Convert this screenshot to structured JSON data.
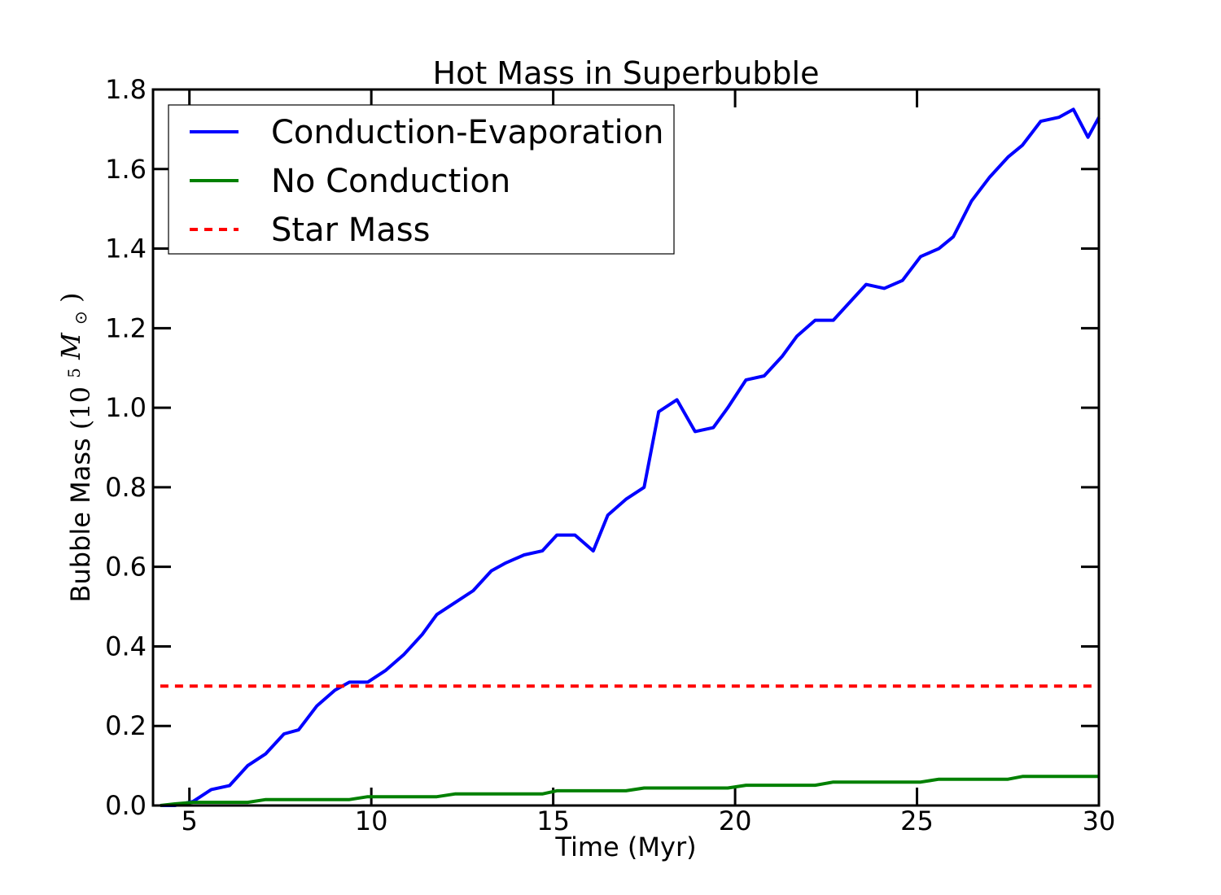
{
  "chart_data": {
    "type": "line",
    "title": "Hot Mass in Superbubble",
    "xlabel": "Time (Myr)",
    "ylabel": "Bubble Mass",
    "ylabel_unit_base": "(10",
    "ylabel_unit_exp": "5",
    "ylabel_unit_symbol": "M",
    "ylabel_unit_sub": "⊙",
    "ylabel_unit_close": ")",
    "xlim": [
      4,
      30
    ],
    "ylim": [
      0,
      1.8
    ],
    "xticks": [
      5,
      10,
      15,
      20,
      25,
      30
    ],
    "yticks": [
      0.0,
      0.2,
      0.4,
      0.6,
      0.8,
      1.0,
      1.2,
      1.4,
      1.6,
      1.8
    ],
    "grid": false,
    "legend_position": "top-left",
    "series": [
      {
        "name": "Conduction-Evaporation",
        "color": "#0000ff",
        "style": "solid",
        "x": [
          4.2,
          4.6,
          5.1,
          5.6,
          6.1,
          6.6,
          7.1,
          7.6,
          8.0,
          8.5,
          9.0,
          9.4,
          9.9,
          10.4,
          10.9,
          11.4,
          11.8,
          12.3,
          12.8,
          13.3,
          13.7,
          14.2,
          14.7,
          15.1,
          15.6,
          16.1,
          16.5,
          17.0,
          17.5,
          17.9,
          18.4,
          18.9,
          19.4,
          19.8,
          20.3,
          20.8,
          21.3,
          21.7,
          22.2,
          22.7,
          23.2,
          23.6,
          24.1,
          24.6,
          25.1,
          25.6,
          26.0,
          26.5,
          27.0,
          27.5,
          27.9,
          28.4,
          28.9,
          29.3,
          29.7,
          30.0
        ],
        "y": [
          0.0,
          0.0,
          0.01,
          0.04,
          0.05,
          0.1,
          0.13,
          0.18,
          0.19,
          0.25,
          0.29,
          0.31,
          0.31,
          0.34,
          0.38,
          0.43,
          0.48,
          0.51,
          0.54,
          0.59,
          0.61,
          0.63,
          0.64,
          0.68,
          0.68,
          0.64,
          0.73,
          0.77,
          0.8,
          0.99,
          1.02,
          0.94,
          0.95,
          1.0,
          1.07,
          1.08,
          1.13,
          1.18,
          1.22,
          1.22,
          1.27,
          1.31,
          1.3,
          1.32,
          1.38,
          1.4,
          1.43,
          1.52,
          1.58,
          1.63,
          1.66,
          1.72,
          1.73,
          1.75,
          1.68,
          1.73
        ]
      },
      {
        "name": "No Conduction",
        "color": "#008000",
        "style": "solid",
        "x": [
          4.2,
          4.6,
          5.1,
          5.6,
          6.1,
          6.6,
          7.1,
          7.6,
          8.0,
          8.5,
          9.0,
          9.4,
          9.9,
          10.4,
          10.9,
          11.4,
          11.8,
          12.3,
          12.8,
          13.3,
          13.7,
          14.2,
          14.7,
          15.1,
          15.6,
          16.1,
          16.5,
          17.0,
          17.5,
          17.9,
          18.4,
          18.9,
          19.4,
          19.8,
          20.3,
          20.8,
          21.3,
          21.7,
          22.2,
          22.7,
          23.2,
          23.6,
          24.1,
          24.6,
          25.1,
          25.6,
          26.0,
          26.5,
          27.0,
          27.5,
          27.9,
          28.4,
          28.9,
          29.3,
          29.7,
          30.0
        ],
        "y": [
          0.0,
          0.004,
          0.008,
          0.008,
          0.008,
          0.008,
          0.015,
          0.015,
          0.015,
          0.015,
          0.015,
          0.015,
          0.022,
          0.022,
          0.022,
          0.022,
          0.022,
          0.029,
          0.029,
          0.029,
          0.029,
          0.029,
          0.029,
          0.037,
          0.037,
          0.037,
          0.037,
          0.037,
          0.044,
          0.044,
          0.044,
          0.044,
          0.044,
          0.044,
          0.051,
          0.051,
          0.051,
          0.051,
          0.051,
          0.059,
          0.059,
          0.059,
          0.059,
          0.059,
          0.059,
          0.066,
          0.066,
          0.066,
          0.066,
          0.066,
          0.073,
          0.073,
          0.073,
          0.073,
          0.073,
          0.073
        ]
      },
      {
        "name": "Star Mass",
        "color": "#ff0000",
        "style": "dashed",
        "x": [
          4.2,
          30.0
        ],
        "y": [
          0.3,
          0.3
        ]
      }
    ]
  }
}
